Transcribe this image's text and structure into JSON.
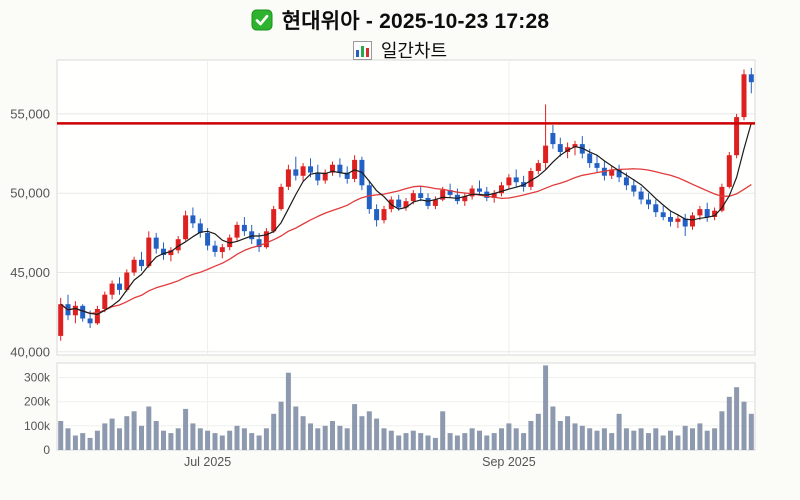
{
  "header": {
    "checkbox_icon": "green-checkbox-icon",
    "chart_icon": "mini-bar-chart-icon"
  },
  "chart_data": {
    "type": "candlestick",
    "title": "현대위아 - 2025-10-23 17:28",
    "subtitle": "일간차트",
    "price_axis": {
      "ylim": [
        39800,
        58400
      ],
      "ticks": [
        40000,
        45000,
        50000,
        55000
      ]
    },
    "volume_axis": {
      "ylim_thousands": [
        0,
        360
      ],
      "ticks_thousands": [
        0,
        100,
        200,
        300
      ]
    },
    "x_ticks": [
      {
        "label": "Jul 2025",
        "index": 20
      },
      {
        "label": "Sep 2025",
        "index": 61
      }
    ],
    "resistance_line": {
      "price": 54400,
      "color": "#cc0000"
    },
    "moving_averages": [
      {
        "name": "ma-long",
        "period": 20,
        "color": "#e23b3b",
        "width": 1.3
      },
      {
        "name": "ma-short",
        "period": 5,
        "color": "#1b1b1b",
        "width": 1.2
      }
    ],
    "colors": {
      "up": "#dd2020",
      "down": "#2360c4",
      "volume_bar": "#8d99ae",
      "grid": "#e8e8e8",
      "vgrid": "#efefef",
      "axis_text": "#555555",
      "panel_border": "#d8d8d8",
      "panel_fill": "#fffffe"
    },
    "candles_format": [
      "open",
      "high",
      "low",
      "close",
      "volume_thousands"
    ],
    "candles": [
      [
        41000,
        43400,
        40700,
        43000,
        120
      ],
      [
        43000,
        43600,
        42000,
        42300,
        90
      ],
      [
        42300,
        43200,
        41800,
        42900,
        60
      ],
      [
        42900,
        43000,
        41900,
        42100,
        70
      ],
      [
        42100,
        42600,
        41500,
        41800,
        50
      ],
      [
        41800,
        42900,
        41700,
        42700,
        80
      ],
      [
        42700,
        43800,
        42500,
        43600,
        110
      ],
      [
        43600,
        44500,
        43300,
        44300,
        130
      ],
      [
        44300,
        44700,
        43600,
        43900,
        90
      ],
      [
        43900,
        45200,
        43800,
        45000,
        140
      ],
      [
        45000,
        46000,
        44800,
        45800,
        160
      ],
      [
        45800,
        46300,
        45100,
        45400,
        100
      ],
      [
        45400,
        47600,
        45300,
        47200,
        180
      ],
      [
        47200,
        47500,
        46200,
        46500,
        120
      ],
      [
        46500,
        46900,
        45800,
        46100,
        80
      ],
      [
        46100,
        46600,
        45700,
        46400,
        70
      ],
      [
        46400,
        47300,
        46200,
        47100,
        90
      ],
      [
        47100,
        48900,
        47000,
        48600,
        170
      ],
      [
        48600,
        49100,
        47800,
        48100,
        110
      ],
      [
        48100,
        48400,
        47200,
        47500,
        90
      ],
      [
        47500,
        47800,
        46400,
        46700,
        80
      ],
      [
        46700,
        47000,
        46000,
        46300,
        70
      ],
      [
        46300,
        46800,
        45900,
        46600,
        60
      ],
      [
        46600,
        47400,
        46400,
        47200,
        80
      ],
      [
        47200,
        48200,
        47000,
        48000,
        100
      ],
      [
        48000,
        48500,
        47300,
        47600,
        90
      ],
      [
        47600,
        48000,
        46800,
        47100,
        70
      ],
      [
        47100,
        47500,
        46300,
        46600,
        60
      ],
      [
        46600,
        47800,
        46500,
        47600,
        90
      ],
      [
        47600,
        49200,
        47500,
        49000,
        150
      ],
      [
        49000,
        50600,
        48900,
        50400,
        200
      ],
      [
        50400,
        51800,
        50200,
        51500,
        320
      ],
      [
        51500,
        52300,
        50800,
        51100,
        180
      ],
      [
        51100,
        51900,
        50700,
        51700,
        140
      ],
      [
        51700,
        52200,
        51000,
        51300,
        110
      ],
      [
        51300,
        51800,
        50500,
        50800,
        90
      ],
      [
        50800,
        51500,
        50600,
        51300,
        100
      ],
      [
        51300,
        52000,
        51100,
        51800,
        120
      ],
      [
        51800,
        52200,
        51000,
        51300,
        100
      ],
      [
        51300,
        51700,
        50600,
        50900,
        90
      ],
      [
        50900,
        52400,
        50700,
        52100,
        190
      ],
      [
        52100,
        52300,
        50200,
        50500,
        140
      ],
      [
        50500,
        50800,
        48700,
        49000,
        160
      ],
      [
        49000,
        49300,
        47900,
        48300,
        130
      ],
      [
        48300,
        49200,
        48100,
        49000,
        90
      ],
      [
        49000,
        49800,
        48800,
        49600,
        80
      ],
      [
        49600,
        49900,
        48900,
        49100,
        60
      ],
      [
        49100,
        49700,
        48900,
        49500,
        70
      ],
      [
        49500,
        50200,
        49300,
        50000,
        80
      ],
      [
        50000,
        50400,
        49500,
        49700,
        70
      ],
      [
        49700,
        50000,
        49000,
        49200,
        60
      ],
      [
        49200,
        49800,
        49000,
        49600,
        50
      ],
      [
        49600,
        50400,
        49500,
        50200,
        160
      ],
      [
        50200,
        50600,
        49700,
        49900,
        70
      ],
      [
        49900,
        50300,
        49300,
        49500,
        60
      ],
      [
        49500,
        50000,
        49200,
        49800,
        70
      ],
      [
        49800,
        50500,
        49600,
        50300,
        90
      ],
      [
        50300,
        50800,
        49900,
        50100,
        80
      ],
      [
        50100,
        50400,
        49500,
        49700,
        60
      ],
      [
        49700,
        50200,
        49400,
        50000,
        70
      ],
      [
        50000,
        50700,
        49800,
        50500,
        90
      ],
      [
        50500,
        51200,
        50300,
        51000,
        110
      ],
      [
        51000,
        51500,
        50400,
        50700,
        90
      ],
      [
        50700,
        51100,
        50100,
        50400,
        70
      ],
      [
        50400,
        51600,
        50200,
        51400,
        120
      ],
      [
        51400,
        52100,
        51200,
        51900,
        150
      ],
      [
        51900,
        55600,
        51500,
        53000,
        350
      ],
      [
        53800,
        54300,
        52800,
        53100,
        180
      ],
      [
        53100,
        53500,
        52300,
        52600,
        120
      ],
      [
        52600,
        53200,
        52200,
        52900,
        140
      ],
      [
        52900,
        53300,
        52400,
        53100,
        110
      ],
      [
        53100,
        53600,
        52200,
        52500,
        100
      ],
      [
        52500,
        52800,
        51600,
        51900,
        90
      ],
      [
        51900,
        52400,
        51300,
        51600,
        80
      ],
      [
        51600,
        52000,
        50800,
        51100,
        90
      ],
      [
        51100,
        51700,
        50900,
        51500,
        70
      ],
      [
        51500,
        51800,
        50700,
        51000,
        150
      ],
      [
        51000,
        51300,
        50200,
        50500,
        90
      ],
      [
        50500,
        50900,
        49800,
        50100,
        80
      ],
      [
        50100,
        50400,
        49300,
        49600,
        90
      ],
      [
        49600,
        50000,
        49000,
        49300,
        70
      ],
      [
        49300,
        49600,
        48500,
        48800,
        90
      ],
      [
        48800,
        49200,
        48300,
        48500,
        60
      ],
      [
        48500,
        48900,
        47900,
        48200,
        80
      ],
      [
        48200,
        48600,
        47800,
        48400,
        60
      ],
      [
        48400,
        48700,
        47300,
        47900,
        100
      ],
      [
        47900,
        48800,
        47700,
        48600,
        90
      ],
      [
        48600,
        49200,
        48300,
        49000,
        110
      ],
      [
        49000,
        49400,
        48200,
        48500,
        80
      ],
      [
        48500,
        49100,
        48300,
        48900,
        90
      ],
      [
        48900,
        50600,
        48800,
        50400,
        160
      ],
      [
        50400,
        52600,
        50300,
        52400,
        220
      ],
      [
        52400,
        55000,
        52200,
        54800,
        260
      ],
      [
        54800,
        57800,
        54600,
        57500,
        200
      ],
      [
        57500,
        57900,
        56300,
        57000,
        150
      ]
    ]
  }
}
